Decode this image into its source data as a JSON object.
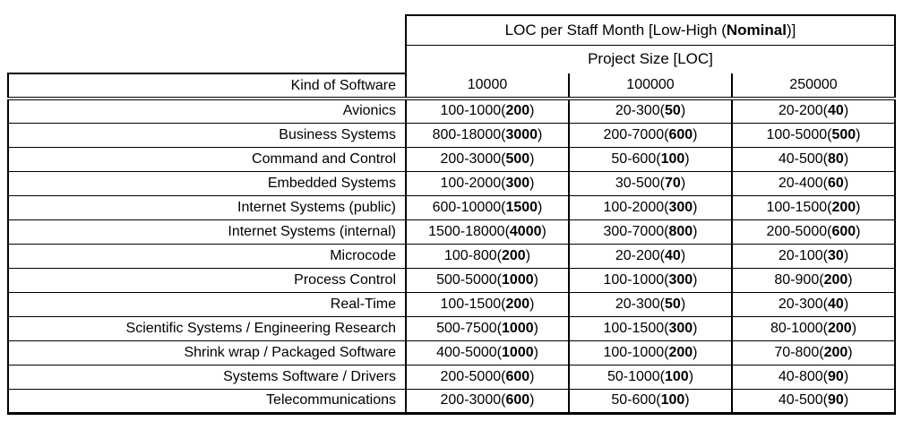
{
  "chart_data": {
    "type": "table",
    "title": "LOC per Staff Month [Low-High (Nominal)]",
    "title_parts": {
      "prefix": "LOC per Staff Month [Low-High (",
      "bold": "Nominal",
      "suffix": ")]"
    },
    "subtitle": "Project Size [LOC]",
    "row_header": "Kind of Software",
    "size_columns": [
      "10000",
      "100000",
      "250000"
    ],
    "cell_format": "low-high(nominal)",
    "rows": [
      {
        "label": "Avionics",
        "cells": [
          {
            "range": "100-1000",
            "nominal": "200"
          },
          {
            "range": "20-300",
            "nominal": "50"
          },
          {
            "range": "20-200",
            "nominal": "40"
          }
        ]
      },
      {
        "label": "Business Systems",
        "cells": [
          {
            "range": "800-18000",
            "nominal": "3000"
          },
          {
            "range": "200-7000",
            "nominal": "600"
          },
          {
            "range": "100-5000",
            "nominal": "500"
          }
        ]
      },
      {
        "label": "Command and Control",
        "cells": [
          {
            "range": "200-3000",
            "nominal": "500"
          },
          {
            "range": "50-600",
            "nominal": "100"
          },
          {
            "range": "40-500",
            "nominal": "80"
          }
        ]
      },
      {
        "label": "Embedded Systems",
        "cells": [
          {
            "range": "100-2000",
            "nominal": "300"
          },
          {
            "range": "30-500",
            "nominal": "70"
          },
          {
            "range": "20-400",
            "nominal": "60"
          }
        ]
      },
      {
        "label": "Internet Systems (public)",
        "cells": [
          {
            "range": "600-10000",
            "nominal": "1500"
          },
          {
            "range": "100-2000",
            "nominal": "300"
          },
          {
            "range": "100-1500",
            "nominal": "200"
          }
        ]
      },
      {
        "label": "Internet Systems (internal)",
        "cells": [
          {
            "range": "1500-18000",
            "nominal": "4000"
          },
          {
            "range": "300-7000",
            "nominal": "800"
          },
          {
            "range": "200-5000",
            "nominal": "600"
          }
        ]
      },
      {
        "label": "Microcode",
        "cells": [
          {
            "range": "100-800",
            "nominal": "200"
          },
          {
            "range": "20-200",
            "nominal": "40"
          },
          {
            "range": "20-100",
            "nominal": "30"
          }
        ]
      },
      {
        "label": "Process Control",
        "cells": [
          {
            "range": "500-5000",
            "nominal": "1000"
          },
          {
            "range": "100-1000",
            "nominal": "300"
          },
          {
            "range": "80-900",
            "nominal": "200"
          }
        ]
      },
      {
        "label": "Real-Time",
        "cells": [
          {
            "range": "100-1500",
            "nominal": "200"
          },
          {
            "range": "20-300",
            "nominal": "50"
          },
          {
            "range": "20-300",
            "nominal": "40"
          }
        ]
      },
      {
        "label": "Scientific Systems / Engineering Research",
        "cells": [
          {
            "range": "500-7500",
            "nominal": "1000"
          },
          {
            "range": "100-1500",
            "nominal": "300"
          },
          {
            "range": "80-1000",
            "nominal": "200"
          }
        ]
      },
      {
        "label": "Shrink wrap / Packaged Software",
        "cells": [
          {
            "range": "400-5000",
            "nominal": "1000"
          },
          {
            "range": "100-1000",
            "nominal": "200"
          },
          {
            "range": "70-800",
            "nominal": "200"
          }
        ]
      },
      {
        "label": "Systems Software / Drivers",
        "cells": [
          {
            "range": "200-5000",
            "nominal": "600"
          },
          {
            "range": "50-1000",
            "nominal": "100"
          },
          {
            "range": "40-800",
            "nominal": "90"
          }
        ]
      },
      {
        "label": "Telecommunications",
        "cells": [
          {
            "range": "200-3000",
            "nominal": "600"
          },
          {
            "range": "50-600",
            "nominal": "100"
          },
          {
            "range": "40-500",
            "nominal": "90"
          }
        ]
      }
    ],
    "colors": {
      "text": "#000000",
      "background": "#ffffff",
      "border": "#000000"
    }
  }
}
